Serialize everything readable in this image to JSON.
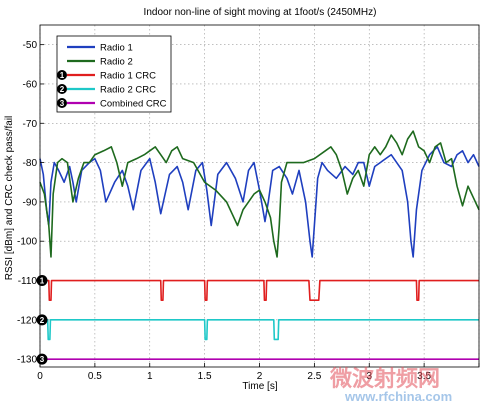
{
  "chart_data": {
    "type": "line",
    "title": "Indoor non-line of sight moving at 1foot/s (2450MHz)",
    "xlabel": "Time [s]",
    "ylabel": "RSSI [dBm] and CRC check pass/fail",
    "xlim": [
      0,
      4
    ],
    "ylim": [
      -132,
      -45
    ],
    "xticks": [
      0,
      0.5,
      1,
      1.5,
      2,
      2.5,
      3,
      3.5,
      4
    ],
    "xtick_labels": [
      "0",
      "0.5",
      "1",
      "1.5",
      "2",
      "2.5",
      "3",
      "3.5",
      ""
    ],
    "yticks": [
      -130,
      -120,
      -110,
      -100,
      -90,
      -80,
      -70,
      -60,
      -50
    ],
    "ytick_labels": [
      "-130",
      "-120",
      "-110",
      "-100",
      "-90",
      "-80",
      "-70",
      "-60",
      "-50"
    ],
    "grid": true,
    "legend_position": "top-left",
    "series": [
      {
        "name": "Radio 1",
        "color": "#1f3fbf",
        "x": [
          0,
          0.03,
          0.06,
          0.08,
          0.1,
          0.13,
          0.17,
          0.22,
          0.27,
          0.3,
          0.33,
          0.38,
          0.45,
          0.5,
          0.55,
          0.6,
          0.68,
          0.75,
          0.8,
          0.85,
          0.92,
          1.0,
          1.05,
          1.1,
          1.18,
          1.25,
          1.3,
          1.35,
          1.42,
          1.48,
          1.52,
          1.56,
          1.62,
          1.7,
          1.78,
          1.85,
          1.9,
          1.95,
          2.0,
          2.05,
          2.08,
          2.12,
          2.18,
          2.25,
          2.3,
          2.36,
          2.42,
          2.46,
          2.48,
          2.5,
          2.53,
          2.57,
          2.62,
          2.7,
          2.78,
          2.85,
          2.9,
          2.95,
          3.0,
          3.05,
          3.1,
          3.15,
          3.2,
          3.25,
          3.3,
          3.35,
          3.38,
          3.4,
          3.43,
          3.48,
          3.55,
          3.62,
          3.68,
          3.75,
          3.8,
          3.85,
          3.9,
          3.95,
          4.0
        ],
        "y": [
          -79,
          -83,
          -92,
          -96,
          -85,
          -80,
          -82,
          -85,
          -81,
          -85,
          -90,
          -82,
          -80,
          -79,
          -82,
          -90,
          -85,
          -82,
          -86,
          -92,
          -82,
          -79,
          -85,
          -93,
          -83,
          -81,
          -85,
          -92,
          -82,
          -80,
          -87,
          -96,
          -83,
          -80,
          -84,
          -90,
          -82,
          -80,
          -87,
          -95,
          -90,
          -82,
          -81,
          -84,
          -88,
          -82,
          -90,
          -100,
          -104,
          -96,
          -84,
          -80,
          -82,
          -84,
          -81,
          -83,
          -80,
          -80,
          -86,
          -81,
          -80,
          -79,
          -78,
          -80,
          -82,
          -90,
          -100,
          -104,
          -92,
          -82,
          -78,
          -76,
          -80,
          -81,
          -78,
          -77,
          -80,
          -78,
          -81
        ]
      },
      {
        "name": "Radio 2",
        "color": "#1e6a1e",
        "x": [
          0,
          0.04,
          0.08,
          0.1,
          0.12,
          0.16,
          0.2,
          0.25,
          0.3,
          0.35,
          0.4,
          0.45,
          0.5,
          0.58,
          0.65,
          0.7,
          0.75,
          0.8,
          0.88,
          0.95,
          1.0,
          1.05,
          1.1,
          1.15,
          1.2,
          1.25,
          1.3,
          1.4,
          1.5,
          1.6,
          1.7,
          1.75,
          1.8,
          1.85,
          1.9,
          1.95,
          2.0,
          2.05,
          2.1,
          2.13,
          2.16,
          2.18,
          2.2,
          2.25,
          2.3,
          2.4,
          2.5,
          2.6,
          2.65,
          2.7,
          2.75,
          2.8,
          2.85,
          2.9,
          2.95,
          3.0,
          3.05,
          3.1,
          3.15,
          3.2,
          3.25,
          3.3,
          3.35,
          3.4,
          3.45,
          3.5,
          3.55,
          3.6,
          3.65,
          3.7,
          3.75,
          3.8,
          3.85,
          3.9,
          3.95,
          4.0
        ],
        "y": [
          -85,
          -88,
          -96,
          -104,
          -88,
          -80,
          -79,
          -80,
          -90,
          -84,
          -80,
          -80,
          -78,
          -77,
          -76,
          -80,
          -86,
          -80,
          -79,
          -78,
          -77,
          -76,
          -78,
          -80,
          -77,
          -76,
          -79,
          -80,
          -85,
          -87,
          -90,
          -93,
          -96,
          -92,
          -90,
          -88,
          -87,
          -90,
          -94,
          -100,
          -104,
          -96,
          -85,
          -80,
          -80,
          -80,
          -79,
          -77,
          -76,
          -78,
          -82,
          -88,
          -84,
          -82,
          -86,
          -78,
          -76,
          -78,
          -76,
          -73,
          -75,
          -78,
          -74,
          -72,
          -76,
          -77,
          -80,
          -76,
          -75,
          -80,
          -79,
          -86,
          -91,
          -86,
          -89,
          -92
        ]
      },
      {
        "name": "Radio 1 CRC",
        "color": "#e01e1e",
        "x": [
          0,
          0.08,
          0.085,
          0.1,
          0.105,
          1.1,
          1.105,
          1.12,
          1.125,
          1.5,
          1.505,
          1.52,
          1.525,
          2.04,
          2.045,
          2.06,
          2.065,
          2.45,
          2.46,
          2.54,
          2.55,
          3.43,
          3.435,
          3.45,
          3.455,
          4
        ],
        "y": [
          -110,
          -110,
          -115,
          -115,
          -110,
          -110,
          -115,
          -115,
          -110,
          -110,
          -115,
          -115,
          -110,
          -110,
          -115,
          -115,
          -110,
          -110,
          -115,
          -115,
          -110,
          -110,
          -115,
          -115,
          -110,
          -110
        ]
      },
      {
        "name": "Radio 2 CRC",
        "color": "#1ec8c8",
        "x": [
          0,
          0.07,
          0.075,
          0.09,
          0.095,
          1.5,
          1.505,
          1.52,
          1.525,
          2.13,
          2.135,
          2.17,
          2.175,
          4
        ],
        "y": [
          -120,
          -120,
          -125,
          -125,
          -120,
          -120,
          -125,
          -125,
          -120,
          -120,
          -125,
          -125,
          -120,
          -120
        ]
      },
      {
        "name": "Combined CRC",
        "color": "#b000b0",
        "x": [
          0,
          4
        ],
        "y": [
          -130,
          -130
        ]
      }
    ],
    "markers": [
      {
        "label": "1",
        "y": -110
      },
      {
        "label": "2",
        "y": -120
      },
      {
        "label": "3",
        "y": -130
      }
    ]
  },
  "watermark": {
    "text_cn": "微波射频网",
    "text_url": "www.rfchina.com"
  }
}
